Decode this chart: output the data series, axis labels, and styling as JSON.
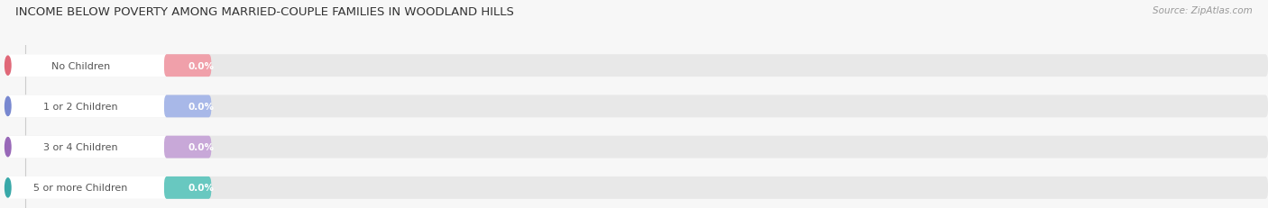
{
  "title": "INCOME BELOW POVERTY AMONG MARRIED-COUPLE FAMILIES IN WOODLAND HILLS",
  "source": "Source: ZipAtlas.com",
  "categories": [
    "No Children",
    "1 or 2 Children",
    "3 or 4 Children",
    "5 or more Children"
  ],
  "values": [
    0.0,
    0.0,
    0.0,
    0.0
  ],
  "bar_colors": [
    "#f0a0aa",
    "#a8b8e8",
    "#c8a8d8",
    "#68c8c0"
  ],
  "dot_colors": [
    "#e06878",
    "#7888d0",
    "#9868b8",
    "#38a8a8"
  ],
  "background_color": "#f7f7f7",
  "bar_bg_color": "#e8e8e8",
  "pill_bg_color": "#ffffff",
  "label_color": "#555555",
  "value_label_color": "#ffffff",
  "title_color": "#333333",
  "source_color": "#999999",
  "tick_color": "#999999",
  "gridline_color": "#cccccc",
  "figsize": [
    14.06,
    2.32
  ],
  "dpi": 100
}
